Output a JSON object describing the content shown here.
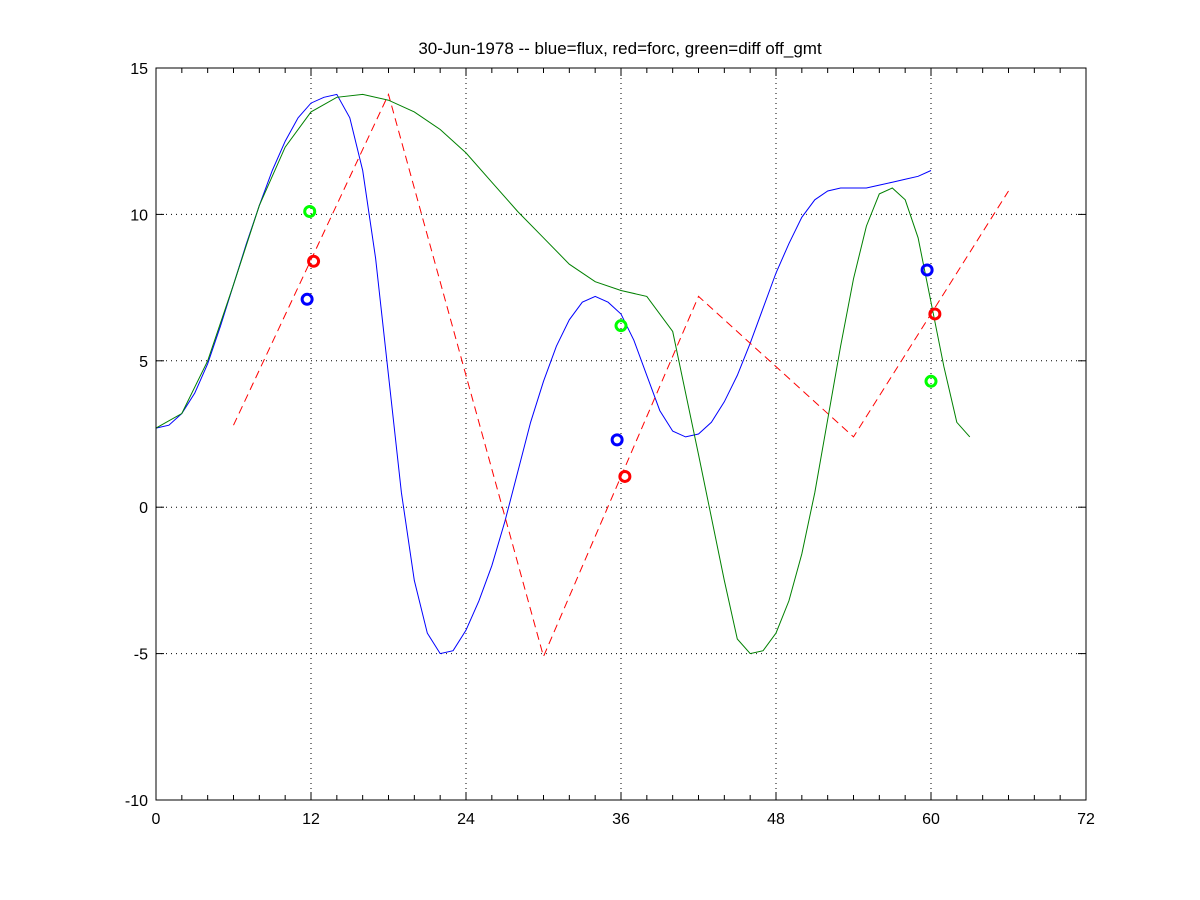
{
  "chart_data": {
    "type": "line",
    "title": "30-Jun-1978 -- blue=flux, red=forc, green=diff off_gmt",
    "xlabel": "",
    "ylabel": "",
    "xlim": [
      0,
      72
    ],
    "ylim": [
      -10,
      15
    ],
    "x_ticks": [
      0,
      12,
      24,
      36,
      48,
      60,
      72
    ],
    "y_ticks": [
      -10,
      -5,
      0,
      5,
      10,
      15
    ],
    "grid": true,
    "series": [
      {
        "color": "#0000ff",
        "style": "solid",
        "points": [
          [
            0,
            2.7
          ],
          [
            1,
            2.8
          ],
          [
            2,
            3.2
          ],
          [
            3,
            3.9
          ],
          [
            4,
            4.9
          ],
          [
            5,
            6.2
          ],
          [
            6,
            7.6
          ],
          [
            7,
            9.0
          ],
          [
            8,
            10.3
          ],
          [
            9,
            11.5
          ],
          [
            10,
            12.5
          ],
          [
            11,
            13.3
          ],
          [
            12,
            13.8
          ],
          [
            13,
            14.0
          ],
          [
            14,
            14.1
          ],
          [
            15,
            13.3
          ],
          [
            16,
            11.5
          ],
          [
            17,
            8.5
          ],
          [
            18,
            4.5
          ],
          [
            19,
            0.5
          ],
          [
            20,
            -2.5
          ],
          [
            21,
            -4.3
          ],
          [
            22,
            -5.0
          ],
          [
            23,
            -4.9
          ],
          [
            24,
            -4.2
          ],
          [
            25,
            -3.2
          ],
          [
            26,
            -2.0
          ],
          [
            27,
            -0.5
          ],
          [
            28,
            1.2
          ],
          [
            29,
            2.9
          ],
          [
            30,
            4.3
          ],
          [
            31,
            5.5
          ],
          [
            32,
            6.4
          ],
          [
            33,
            7.0
          ],
          [
            34,
            7.2
          ],
          [
            35,
            7.0
          ],
          [
            36,
            6.6
          ],
          [
            37,
            5.7
          ],
          [
            38,
            4.5
          ],
          [
            39,
            3.3
          ],
          [
            40,
            2.6
          ],
          [
            41,
            2.4
          ],
          [
            42,
            2.5
          ],
          [
            43,
            2.9
          ],
          [
            44,
            3.6
          ],
          [
            45,
            4.5
          ],
          [
            46,
            5.6
          ],
          [
            47,
            6.8
          ],
          [
            48,
            8.0
          ],
          [
            49,
            9.0
          ],
          [
            50,
            9.9
          ],
          [
            51,
            10.5
          ],
          [
            52,
            10.8
          ],
          [
            53,
            10.9
          ],
          [
            54,
            10.9
          ],
          [
            55,
            10.9
          ],
          [
            56,
            11.0
          ],
          [
            57,
            11.1
          ],
          [
            58,
            11.2
          ],
          [
            59,
            11.3
          ],
          [
            60,
            11.5
          ]
        ]
      },
      {
        "color": "#ff0000",
        "style": "dashed",
        "points": [
          [
            6,
            2.8
          ],
          [
            18,
            14.1
          ],
          [
            30,
            -5.1
          ],
          [
            42,
            7.2
          ],
          [
            54,
            2.4
          ],
          [
            66,
            10.8
          ]
        ]
      },
      {
        "color": "#008000",
        "style": "solid",
        "points": [
          [
            0,
            2.7
          ],
          [
            2,
            3.2
          ],
          [
            4,
            5.0
          ],
          [
            6,
            7.6
          ],
          [
            8,
            10.3
          ],
          [
            10,
            12.3
          ],
          [
            12,
            13.5
          ],
          [
            14,
            14.0
          ],
          [
            16,
            14.1
          ],
          [
            18,
            13.9
          ],
          [
            20,
            13.5
          ],
          [
            22,
            12.9
          ],
          [
            24,
            12.1
          ],
          [
            26,
            11.1
          ],
          [
            28,
            10.1
          ],
          [
            30,
            9.2
          ],
          [
            32,
            8.3
          ],
          [
            34,
            7.7
          ],
          [
            36,
            7.4
          ],
          [
            38,
            7.2
          ],
          [
            40,
            6.0
          ],
          [
            42,
            1.8
          ],
          [
            44,
            -2.5
          ],
          [
            45,
            -4.5
          ],
          [
            46,
            -5.0
          ],
          [
            47,
            -4.9
          ],
          [
            48,
            -4.3
          ],
          [
            49,
            -3.2
          ],
          [
            50,
            -1.6
          ],
          [
            51,
            0.5
          ],
          [
            52,
            3.0
          ],
          [
            53,
            5.5
          ],
          [
            54,
            7.8
          ],
          [
            55,
            9.6
          ],
          [
            56,
            10.7
          ],
          [
            57,
            10.9
          ],
          [
            58,
            10.5
          ],
          [
            59,
            9.2
          ],
          [
            60,
            7.0
          ],
          [
            61,
            4.8
          ],
          [
            62,
            2.9
          ],
          [
            63,
            2.4
          ]
        ]
      }
    ],
    "markers": [
      {
        "x": 11.7,
        "y": 7.1,
        "color": "#0000ff"
      },
      {
        "x": 12.2,
        "y": 8.4,
        "color": "#ff0000"
      },
      {
        "x": 11.9,
        "y": 10.1,
        "color": "#00ff00"
      },
      {
        "x": 35.7,
        "y": 2.3,
        "color": "#0000ff"
      },
      {
        "x": 36.3,
        "y": 1.05,
        "color": "#ff0000"
      },
      {
        "x": 36.0,
        "y": 6.2,
        "color": "#00ff00"
      },
      {
        "x": 59.7,
        "y": 8.1,
        "color": "#0000ff"
      },
      {
        "x": 60.3,
        "y": 6.6,
        "color": "#ff0000"
      },
      {
        "x": 60.0,
        "y": 4.3,
        "color": "#00ff00"
      }
    ]
  }
}
